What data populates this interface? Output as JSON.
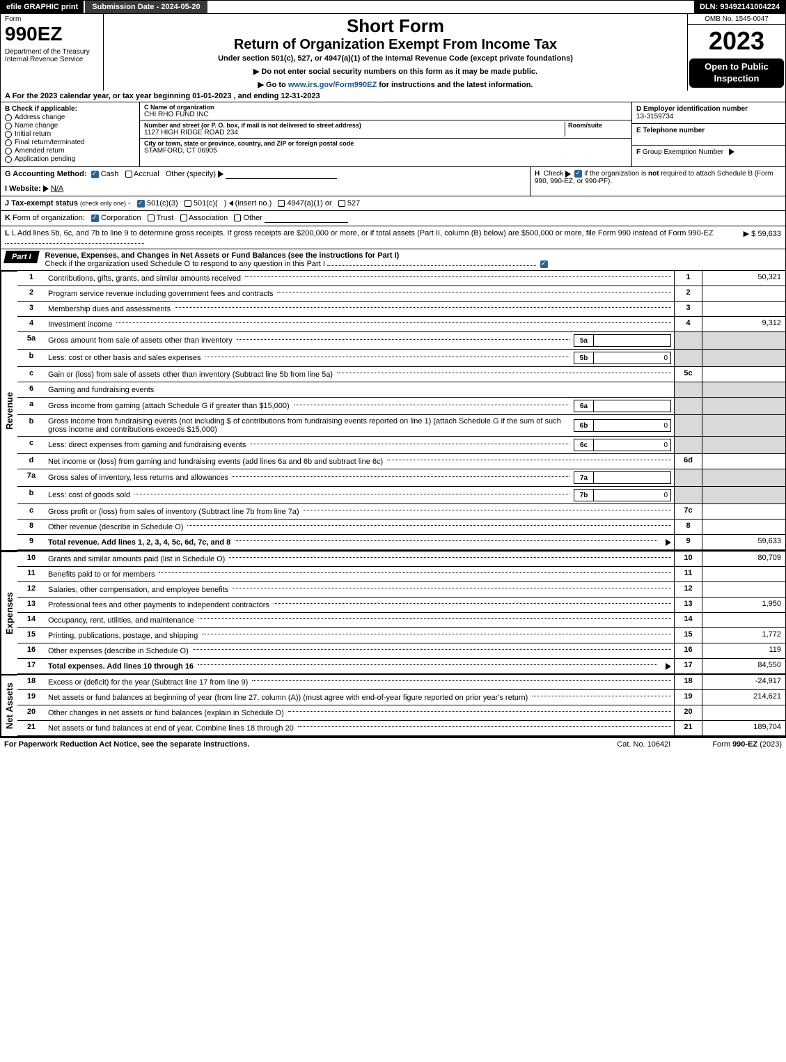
{
  "topbar": {
    "efile": "efile GRAPHIC print",
    "submission": "Submission Date - 2024-05-20",
    "dln": "DLN: 93492141004224"
  },
  "header": {
    "form_label": "Form",
    "form_no": "990EZ",
    "dept": "Department of the Treasury\nInternal Revenue Service",
    "title": "Short Form",
    "subtitle": "Return of Organization Exempt From Income Tax",
    "under": "Under section 501(c), 527, or 4947(a)(1) of the Internal Revenue Code (except private foundations)",
    "warn1": "▶ Do not enter social security numbers on this form as it may be made public.",
    "warn2": "▶ Go to www.irs.gov/Form990EZ for instructions and the latest information.",
    "omb": "OMB No. 1545-0047",
    "year": "2023",
    "open": "Open to Public Inspection"
  },
  "row_a": "A  For the 2023 calendar year, or tax year beginning 01-01-2023 , and ending 12-31-2023",
  "section_b": {
    "heading": "B  Check if applicable:",
    "opts": [
      "Address change",
      "Name change",
      "Initial return",
      "Final return/terminated",
      "Amended return",
      "Application pending"
    ]
  },
  "section_c": {
    "c_label": "C Name of organization",
    "c_val": "CHI RHO FUND INC",
    "addr_label": "Number and street (or P. O. box, if mail is not delivered to street address)",
    "room_label": "Room/suite",
    "addr_val": "1127 HIGH RIDGE ROAD 234",
    "city_label": "City or town, state or province, country, and ZIP or foreign postal code",
    "city_val": "STAMFORD, CT  06905"
  },
  "section_right": {
    "d_label": "D Employer identification number",
    "d_val": "13-3159734",
    "e_label": "E Telephone number",
    "f_label": "F Group Exemption Number   ▶"
  },
  "row_g": {
    "g_label": "G Accounting Method:",
    "g_opts": "Cash   ◯ Accrual   Other (specify) ▶",
    "h_text": "H  Check ▶     if the organization is not required to attach Schedule B (Form 990, 990-EZ, or 990-PF)."
  },
  "row_i": "I Website: ▶ N/A",
  "row_j": "J Tax-exempt status (check only one) -   501(c)(3)  ◯ 501(c)(  ) ◀ (insert no.)  ◯ 4947(a)(1) or  ◯ 527",
  "row_k": "K Form of organization:    Corporation   ◯ Trust   ◯ Association   ◯ Other",
  "row_l": {
    "text": "L Add lines 5b, 6c, and 7b to line 9 to determine gross receipts. If gross receipts are $200,000 or more, or if total assets (Part II, column (B) below) are $500,000 or more, file Form 990 instead of Form 990-EZ",
    "amount": "▶ $ 59,633"
  },
  "part1": {
    "tab": "Part I",
    "title": "Revenue, Expenses, and Changes in Net Assets or Fund Balances (see the instructions for Part I)",
    "sub": "Check if the organization used Schedule O to respond to any question in this Part I"
  },
  "sections": {
    "revenue_label": "Revenue",
    "expenses_label": "Expenses",
    "netassets_label": "Net Assets"
  },
  "lines": {
    "l1": {
      "no": "1",
      "desc": "Contributions, gifts, grants, and similar amounts received",
      "box": "1",
      "val": "50,321"
    },
    "l2": {
      "no": "2",
      "desc": "Program service revenue including government fees and contracts",
      "box": "2",
      "val": ""
    },
    "l3": {
      "no": "3",
      "desc": "Membership dues and assessments",
      "box": "3",
      "val": ""
    },
    "l4": {
      "no": "4",
      "desc": "Investment income",
      "box": "4",
      "val": "9,312"
    },
    "l5a": {
      "no": "5a",
      "desc": "Gross amount from sale of assets other than inventory",
      "sub_box": "5a",
      "sub_val": ""
    },
    "l5b": {
      "no": "b",
      "desc": "Less: cost or other basis and sales expenses",
      "sub_box": "5b",
      "sub_val": "0"
    },
    "l5c": {
      "no": "c",
      "desc": "Gain or (loss) from sale of assets other than inventory (Subtract line 5b from line 5a)",
      "box": "5c",
      "val": ""
    },
    "l6": {
      "no": "6",
      "desc": "Gaming and fundraising events"
    },
    "l6a": {
      "no": "a",
      "desc": "Gross income from gaming (attach Schedule G if greater than $15,000)",
      "sub_box": "6a",
      "sub_val": ""
    },
    "l6b": {
      "no": "b",
      "desc": "Gross income from fundraising events (not including $           of contributions from fundraising events reported on line 1) (attach Schedule G if the sum of such gross income and contributions exceeds $15,000)",
      "sub_box": "6b",
      "sub_val": "0"
    },
    "l6c": {
      "no": "c",
      "desc": "Less: direct expenses from gaming and fundraising events",
      "sub_box": "6c",
      "sub_val": "0"
    },
    "l6d": {
      "no": "d",
      "desc": "Net income or (loss) from gaming and fundraising events (add lines 6a and 6b and subtract line 6c)",
      "box": "6d",
      "val": ""
    },
    "l7a": {
      "no": "7a",
      "desc": "Gross sales of inventory, less returns and allowances",
      "sub_box": "7a",
      "sub_val": ""
    },
    "l7b": {
      "no": "b",
      "desc": "Less: cost of goods sold",
      "sub_box": "7b",
      "sub_val": "0"
    },
    "l7c": {
      "no": "c",
      "desc": "Gross profit or (loss) from sales of inventory (Subtract line 7b from line 7a)",
      "box": "7c",
      "val": ""
    },
    "l8": {
      "no": "8",
      "desc": "Other revenue (describe in Schedule O)",
      "box": "8",
      "val": ""
    },
    "l9": {
      "no": "9",
      "desc": "Total revenue. Add lines 1, 2, 3, 4, 5c, 6d, 7c, and 8",
      "box": "9",
      "val": "59,633",
      "bold": true,
      "arrow": true
    },
    "l10": {
      "no": "10",
      "desc": "Grants and similar amounts paid (list in Schedule O)",
      "box": "10",
      "val": "80,709"
    },
    "l11": {
      "no": "11",
      "desc": "Benefits paid to or for members",
      "box": "11",
      "val": ""
    },
    "l12": {
      "no": "12",
      "desc": "Salaries, other compensation, and employee benefits",
      "box": "12",
      "val": ""
    },
    "l13": {
      "no": "13",
      "desc": "Professional fees and other payments to independent contractors",
      "box": "13",
      "val": "1,950"
    },
    "l14": {
      "no": "14",
      "desc": "Occupancy, rent, utilities, and maintenance",
      "box": "14",
      "val": ""
    },
    "l15": {
      "no": "15",
      "desc": "Printing, publications, postage, and shipping",
      "box": "15",
      "val": "1,772"
    },
    "l16": {
      "no": "16",
      "desc": "Other expenses (describe in Schedule O)",
      "box": "16",
      "val": "119"
    },
    "l17": {
      "no": "17",
      "desc": "Total expenses. Add lines 10 through 16",
      "box": "17",
      "val": "84,550",
      "bold": true,
      "arrow": true
    },
    "l18": {
      "no": "18",
      "desc": "Excess or (deficit) for the year (Subtract line 17 from line 9)",
      "box": "18",
      "val": "-24,917"
    },
    "l19": {
      "no": "19",
      "desc": "Net assets or fund balances at beginning of year (from line 27, column (A)) (must agree with end-of-year figure reported on prior year's return)",
      "box": "19",
      "val": "214,621"
    },
    "l20": {
      "no": "20",
      "desc": "Other changes in net assets or fund balances (explain in Schedule O)",
      "box": "20",
      "val": ""
    },
    "l21": {
      "no": "21",
      "desc": "Net assets or fund balances at end of year. Combine lines 18 through 20",
      "box": "21",
      "val": "189,704"
    }
  },
  "footer": {
    "left": "For Paperwork Reduction Act Notice, see the separate instructions.",
    "mid": "Cat. No. 10642I",
    "right": "Form 990-EZ (2023)"
  }
}
